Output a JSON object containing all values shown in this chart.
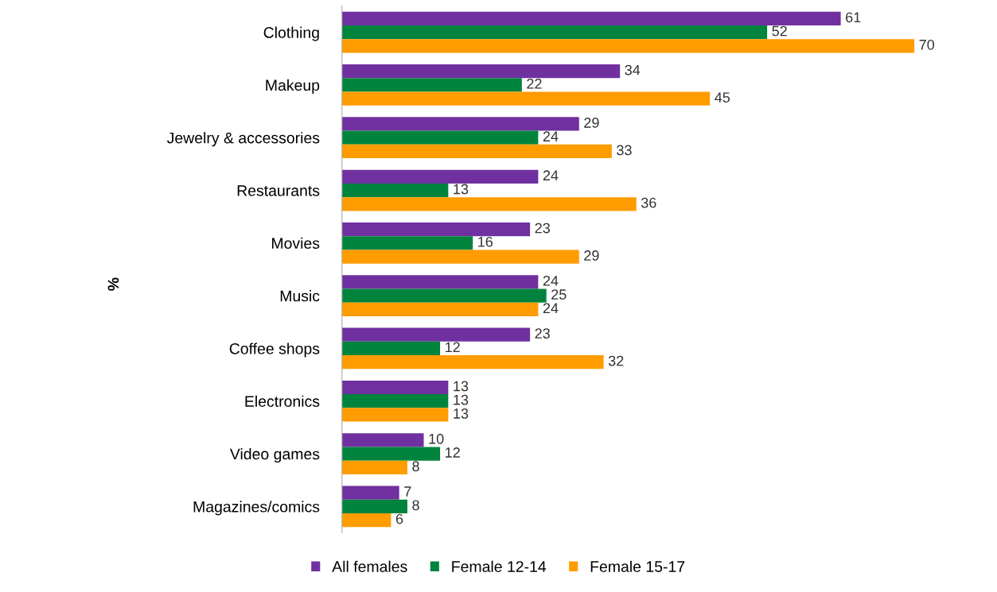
{
  "chart_data": {
    "type": "bar",
    "orientation": "horizontal",
    "ylabel": "%",
    "categories": [
      "Clothing",
      "Makeup",
      "Jewelry & accessories",
      "Restaurants",
      "Movies",
      "Music",
      "Coffee shops",
      "Electronics",
      "Video games",
      "Magazines/comics"
    ],
    "series": [
      {
        "name": "All females",
        "color": "#7030a0",
        "values": [
          61,
          34,
          29,
          24,
          23,
          24,
          23,
          13,
          10,
          7
        ]
      },
      {
        "name": "Female 12-14",
        "color": "#00843d",
        "values": [
          52,
          22,
          24,
          13,
          16,
          25,
          12,
          13,
          12,
          8
        ]
      },
      {
        "name": "Female 15-17",
        "color": "#ff9c00",
        "values": [
          70,
          45,
          33,
          36,
          29,
          24,
          32,
          13,
          8,
          6
        ]
      }
    ],
    "data_labels": true,
    "legend": "bottom",
    "grid": false,
    "tick_labels": "y"
  }
}
